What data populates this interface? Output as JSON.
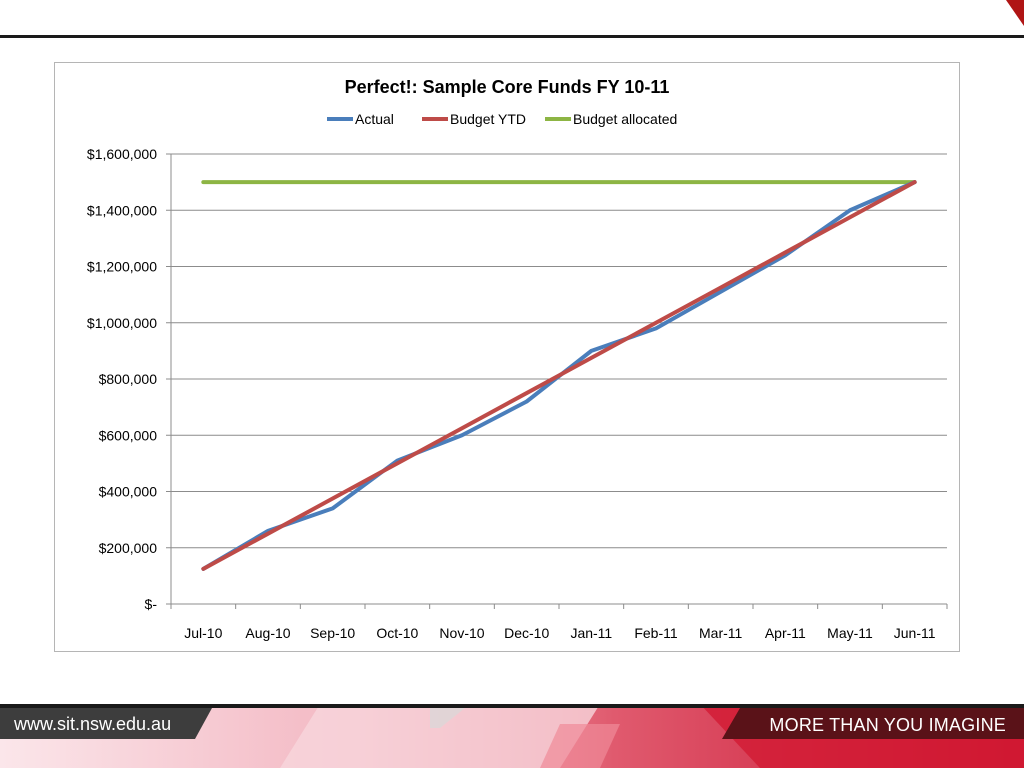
{
  "chart_data": {
    "type": "line",
    "title": "Perfect!: Sample Core Funds FY 10-11",
    "xlabel": "",
    "ylabel": "",
    "categories": [
      "Jul-10",
      "Aug-10",
      "Sep-10",
      "Oct-10",
      "Nov-10",
      "Dec-10",
      "Jan-11",
      "Feb-11",
      "Mar-11",
      "Apr-11",
      "May-11",
      "Jun-11"
    ],
    "y_ticks": [
      "$-",
      "$200,000",
      "$400,000",
      "$600,000",
      "$800,000",
      "$1,000,000",
      "$1,200,000",
      "$1,400,000",
      "$1,600,000"
    ],
    "ylim": [
      0,
      1600000
    ],
    "grid": true,
    "legend_position": "top",
    "series": [
      {
        "name": "Actual",
        "color": "#4a7ebb",
        "values": [
          125000,
          260000,
          340000,
          510000,
          600000,
          720000,
          900000,
          980000,
          1110000,
          1240000,
          1400000,
          1500000
        ]
      },
      {
        "name": "Budget YTD",
        "color": "#be4b48",
        "values": [
          125000,
          250000,
          375000,
          500000,
          625000,
          750000,
          875000,
          1000000,
          1125000,
          1250000,
          1375000,
          1500000
        ]
      },
      {
        "name": "Budget allocated",
        "color": "#8db544",
        "values": [
          1500000,
          1500000,
          1500000,
          1500000,
          1500000,
          1500000,
          1500000,
          1500000,
          1500000,
          1500000,
          1500000,
          1500000
        ]
      }
    ]
  },
  "footer": {
    "url": "www.sit.nsw.edu.au",
    "tagline": "MORE THAN YOU IMAGINE"
  }
}
